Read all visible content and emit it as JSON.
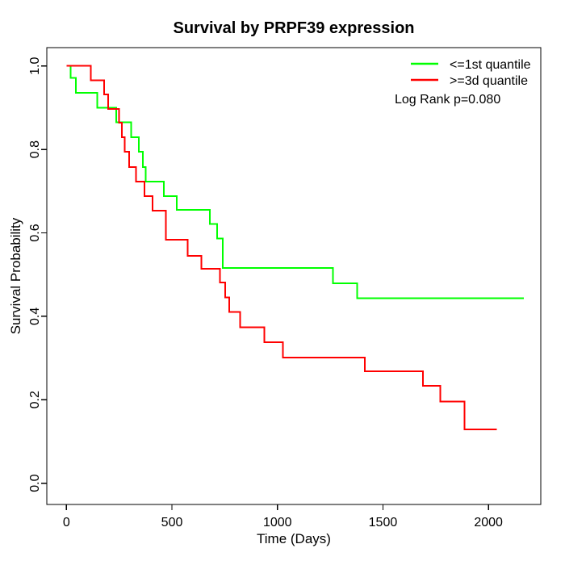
{
  "chart_data": {
    "type": "line",
    "subtype": "kaplan-meier-step",
    "title": "Survival by PRPF39 expression",
    "xlabel": "Time (Days)",
    "ylabel": "Survival Probability",
    "xlim": [
      -93,
      2248
    ],
    "ylim": [
      -0.051,
      1.044
    ],
    "grid": false,
    "xticks": {
      "values": [
        0,
        500,
        1000,
        1500,
        2000
      ],
      "labels": [
        "0",
        "500",
        "1000",
        "1500",
        "2000"
      ]
    },
    "yticks": {
      "values": [
        0.0,
        0.2,
        0.4,
        0.6,
        0.8,
        1.0
      ],
      "labels": [
        "0.0",
        "0.2",
        "0.4",
        "0.6",
        "0.8",
        "1.0"
      ]
    },
    "legend": {
      "position": "top-right",
      "entries": [
        {
          "label": "<=1st quantile",
          "color": "#00FF00"
        },
        {
          "label": ">=3d quantile",
          "color": "#FF0000"
        }
      ],
      "annotation": "Log Rank p=0.080"
    },
    "series": [
      {
        "name": "<=1st quantile",
        "color": "#00FF00",
        "end_time": 2168,
        "steps": [
          [
            0,
            1.0
          ],
          [
            19,
            0.971
          ],
          [
            44,
            0.936
          ],
          [
            147,
            0.9
          ],
          [
            236,
            0.865
          ],
          [
            306,
            0.829
          ],
          [
            344,
            0.794
          ],
          [
            363,
            0.758
          ],
          [
            376,
            0.723
          ],
          [
            462,
            0.688
          ],
          [
            523,
            0.655
          ],
          [
            679,
            0.621
          ],
          [
            715,
            0.586
          ],
          [
            741,
            0.516
          ],
          [
            1263,
            0.479
          ],
          [
            1377,
            0.443
          ]
        ]
      },
      {
        "name": ">=3d quantile",
        "color": "#FF0000",
        "end_time": 2040,
        "steps": [
          [
            0,
            1.0
          ],
          [
            115,
            0.966
          ],
          [
            178,
            0.932
          ],
          [
            197,
            0.897
          ],
          [
            249,
            0.864
          ],
          [
            262,
            0.829
          ],
          [
            277,
            0.794
          ],
          [
            298,
            0.758
          ],
          [
            330,
            0.723
          ],
          [
            369,
            0.688
          ],
          [
            408,
            0.653
          ],
          [
            472,
            0.584
          ],
          [
            575,
            0.545
          ],
          [
            640,
            0.514
          ],
          [
            727,
            0.481
          ],
          [
            752,
            0.445
          ],
          [
            771,
            0.41
          ],
          [
            823,
            0.374
          ],
          [
            937,
            0.338
          ],
          [
            1026,
            0.301
          ],
          [
            1415,
            0.268
          ],
          [
            1689,
            0.233
          ],
          [
            1772,
            0.196
          ],
          [
            1887,
            0.129
          ]
        ]
      }
    ],
    "line_width": 2
  }
}
